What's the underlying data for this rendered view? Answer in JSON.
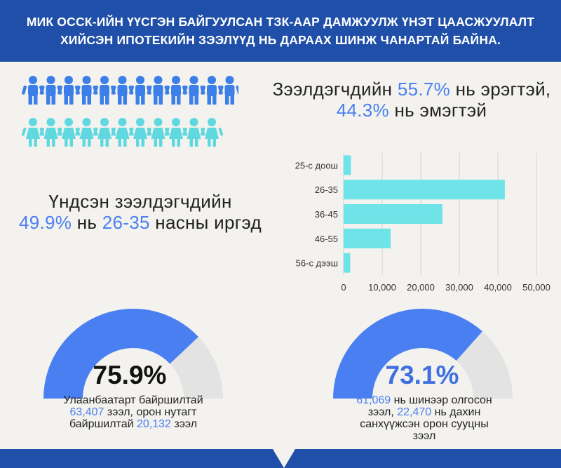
{
  "header": {
    "line1": "МИК ОССК-ИЙН ҮҮСГЭН БАЙГУУЛСАН ТЗК-ААР ДАМЖУУЛЖ ҮНЭТ ЦААСЖУУЛАЛТ",
    "line2": "ХИЙСЭН ИПОТЕКИЙН ЗЭЭЛҮҮД НЬ ДАРААХ ШИНЖ ЧАНАРТАЙ БАЙНА."
  },
  "gender": {
    "prefix": "Зээлдэгчдийн ",
    "male_pct": "55.7%",
    "mid": " нь эрэгтэй, ",
    "female_pct": "44.3%",
    "suffix": " нь эмэгтэй",
    "male_color": "#3d7fe8",
    "female_color": "#5fd8e0",
    "male_count": 12,
    "female_count": 11
  },
  "age": {
    "prefix": "Үндсэн зээлдэгчдийн",
    "pct": "49.9%",
    "mid": " нь ",
    "range": "26-35",
    "suffix": " насны иргэд"
  },
  "chart_data": {
    "type": "bar",
    "orientation": "horizontal",
    "categories": [
      "25-с доош",
      "26-35",
      "36-45",
      "46-55",
      "56-с дээш"
    ],
    "values": [
      1900,
      41800,
      25600,
      12200,
      1700
    ],
    "xlim": [
      0,
      50000
    ],
    "xticks": [
      "0",
      "10,000",
      "20,000",
      "30,000",
      "40,000",
      "50,000"
    ],
    "grid": true,
    "bar_color": "#6ee3e8"
  },
  "location": {
    "pct": "75.9%",
    "value": 0.759,
    "caption_line1": "Улаанбаатарт байршилтай",
    "count1": "63,407",
    "caption_line2_rest": " зээл, орон нутагт",
    "caption_line3_pre": "байршилтай ",
    "count2": "20,132",
    "caption_line3_rest": " зээл",
    "fill_color": "#4a7ff2",
    "rest_color": "#e3e3e3"
  },
  "newloan": {
    "pct": "73.1%",
    "value": 0.731,
    "count1": "61,069",
    "caption_line1_rest": " нь шинээр олгосон",
    "caption_line2_pre": "зээл, ",
    "count2": "22,470",
    "caption_line2_rest": " нь дахин",
    "caption_line3": "санхүүжсэн орон сууцны",
    "caption_line4": "зээл",
    "fill_color": "#4a7ff2",
    "rest_color": "#e3e3e3",
    "pct_color": "#3f6fe0"
  },
  "colors": {
    "header_bg": "#1f4fa8",
    "accent": "#4a80f0",
    "page_bg": "#f3f2ee"
  }
}
